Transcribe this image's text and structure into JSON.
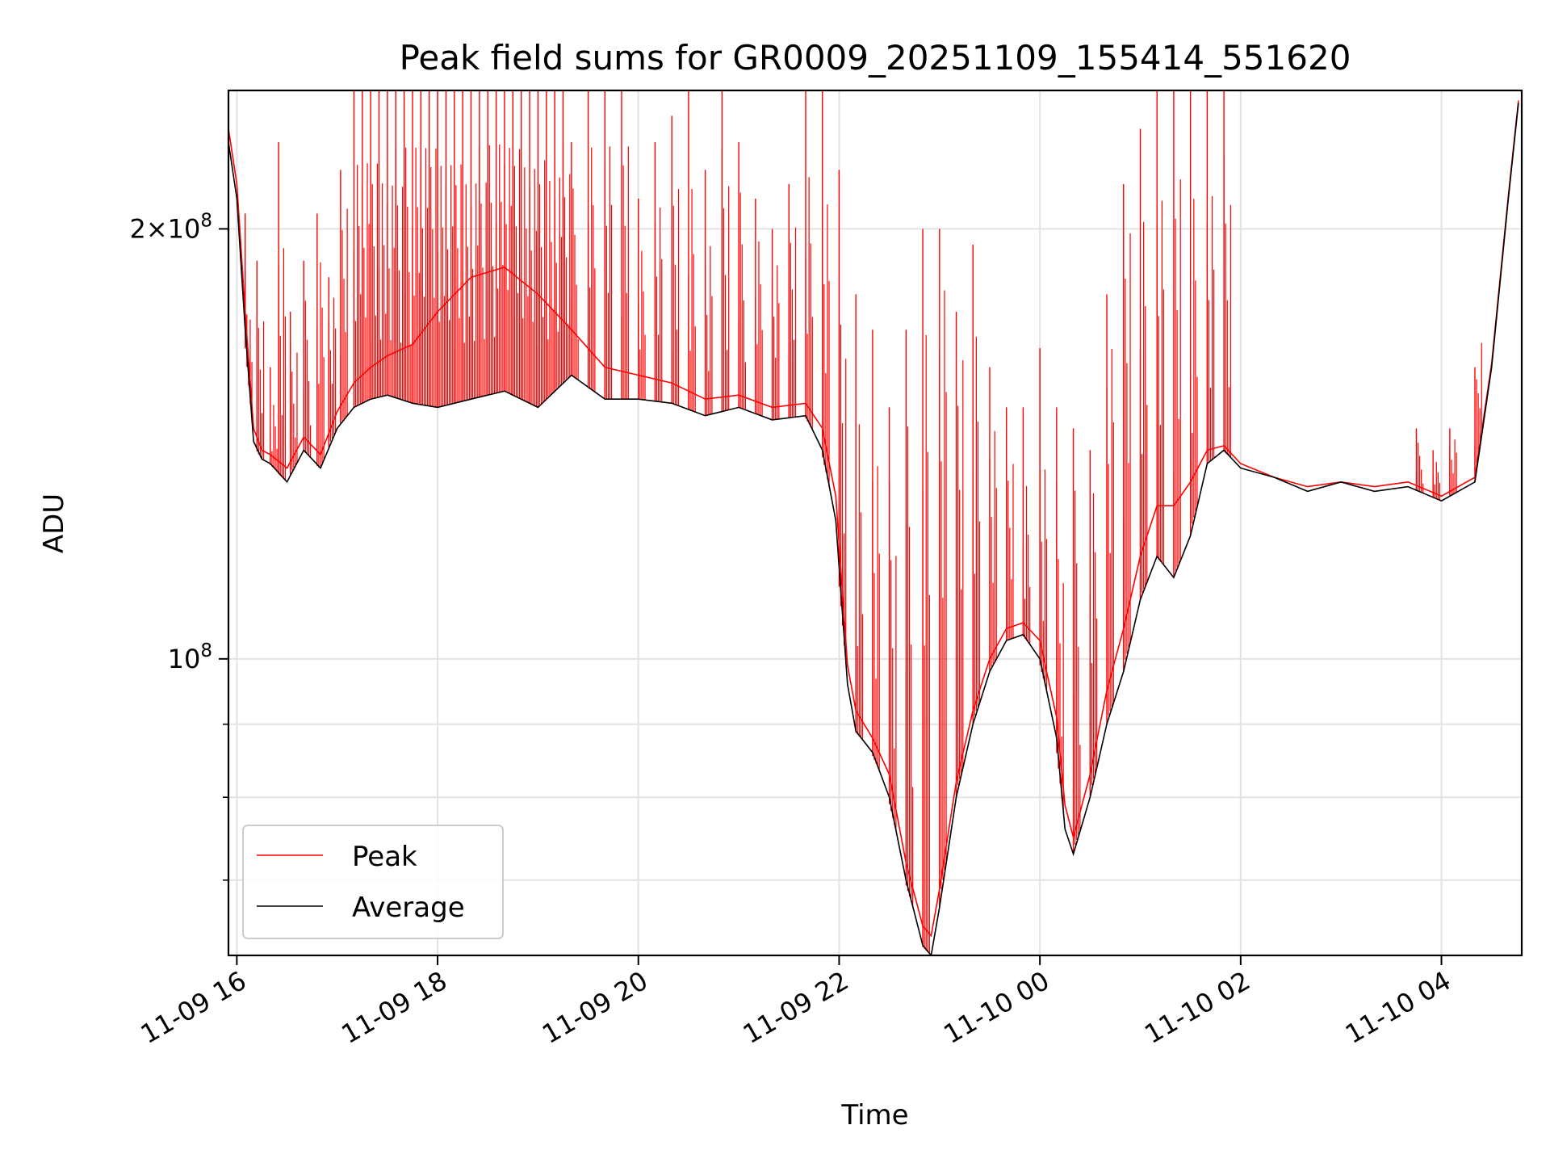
{
  "chart_data": {
    "type": "line",
    "title": "Peak field sums for GR0009_20251109_155414_551620",
    "xlabel": "Time",
    "ylabel": "ADU",
    "yscale": "log",
    "ylim": [
      62000000,
      250000000
    ],
    "xlim": [
      "2025-11-09 15:55",
      "2025-11-10 04:48"
    ],
    "grid": true,
    "legend": {
      "placement": "lower-left",
      "entries": [
        "Peak",
        "Average"
      ]
    },
    "x_ticks": [
      {
        "t": "2025-11-09 16:00",
        "label": "11-09 16"
      },
      {
        "t": "2025-11-09 18:00",
        "label": "11-09 18"
      },
      {
        "t": "2025-11-09 20:00",
        "label": "11-09 20"
      },
      {
        "t": "2025-11-09 22:00",
        "label": "11-09 22"
      },
      {
        "t": "2025-11-10 00:00",
        "label": "11-10 00"
      },
      {
        "t": "2025-11-10 02:00",
        "label": "11-10 02"
      },
      {
        "t": "2025-11-10 04:00",
        "label": "11-10 04"
      }
    ],
    "y_ticks_major": [
      {
        "v": 100000000,
        "mantissa": "",
        "base": "10",
        "exp": "8"
      },
      {
        "v": 200000000,
        "mantissa": "2×",
        "base": "10",
        "exp": "8"
      }
    ],
    "y_ticks_minor": [
      70000000,
      80000000,
      90000000,
      300000000
    ],
    "series": [
      {
        "name": "Average",
        "color": "#000000",
        "x": [
          "2025-11-09 15:55",
          "2025-11-09 16:00",
          "2025-11-09 16:05",
          "2025-11-09 16:10",
          "2025-11-09 16:15",
          "2025-11-09 16:20",
          "2025-11-09 16:30",
          "2025-11-09 16:40",
          "2025-11-09 16:50",
          "2025-11-09 17:00",
          "2025-11-09 17:10",
          "2025-11-09 17:20",
          "2025-11-09 17:30",
          "2025-11-09 17:45",
          "2025-11-09 18:00",
          "2025-11-09 18:20",
          "2025-11-09 18:40",
          "2025-11-09 19:00",
          "2025-11-09 19:20",
          "2025-11-09 19:40",
          "2025-11-09 20:00",
          "2025-11-09 20:20",
          "2025-11-09 20:40",
          "2025-11-09 21:00",
          "2025-11-09 21:20",
          "2025-11-09 21:40",
          "2025-11-09 21:50",
          "2025-11-09 21:58",
          "2025-11-09 22:05",
          "2025-11-09 22:10",
          "2025-11-09 22:20",
          "2025-11-09 22:30",
          "2025-11-09 22:40",
          "2025-11-09 22:50",
          "2025-11-09 22:55",
          "2025-11-09 23:00",
          "2025-11-09 23:10",
          "2025-11-09 23:20",
          "2025-11-09 23:30",
          "2025-11-09 23:40",
          "2025-11-09 23:50",
          "2025-11-10 00:00",
          "2025-11-10 00:10",
          "2025-11-10 00:15",
          "2025-11-10 00:20",
          "2025-11-10 00:30",
          "2025-11-10 00:40",
          "2025-11-10 00:50",
          "2025-11-10 01:00",
          "2025-11-10 01:10",
          "2025-11-10 01:20",
          "2025-11-10 01:30",
          "2025-11-10 01:40",
          "2025-11-10 01:50",
          "2025-11-10 02:00",
          "2025-11-10 02:20",
          "2025-11-10 02:40",
          "2025-11-10 03:00",
          "2025-11-10 03:20",
          "2025-11-10 03:40",
          "2025-11-10 04:00",
          "2025-11-10 04:20",
          "2025-11-10 04:30",
          "2025-11-10 04:40",
          "2025-11-10 04:46"
        ],
        "y": [
          230000000,
          210000000,
          170000000,
          142000000,
          138000000,
          137000000,
          133000000,
          140000000,
          136000000,
          145000000,
          150000000,
          152000000,
          153000000,
          151000000,
          150000000,
          152000000,
          154000000,
          150000000,
          158000000,
          152000000,
          152000000,
          151000000,
          148000000,
          150000000,
          147000000,
          148000000,
          140000000,
          125000000,
          96000000,
          89000000,
          86000000,
          80000000,
          70000000,
          63000000,
          62000000,
          67000000,
          80000000,
          90000000,
          98000000,
          103000000,
          104000000,
          100000000,
          88000000,
          76000000,
          73000000,
          80000000,
          90000000,
          98000000,
          110000000,
          118000000,
          114000000,
          122000000,
          137000000,
          140000000,
          136000000,
          134000000,
          131000000,
          133000000,
          131000000,
          132000000,
          129000000,
          133000000,
          160000000,
          210000000,
          245000000
        ]
      },
      {
        "name": "Peak",
        "color": "#ff0000",
        "x": [
          "2025-11-09 15:55",
          "2025-11-09 16:00",
          "2025-11-09 16:05",
          "2025-11-09 16:10",
          "2025-11-09 16:15",
          "2025-11-09 16:20",
          "2025-11-09 16:30",
          "2025-11-09 16:40",
          "2025-11-09 16:50",
          "2025-11-09 17:00",
          "2025-11-09 17:10",
          "2025-11-09 17:20",
          "2025-11-09 17:30",
          "2025-11-09 17:45",
          "2025-11-09 18:00",
          "2025-11-09 18:20",
          "2025-11-09 18:40",
          "2025-11-09 19:00",
          "2025-11-09 19:20",
          "2025-11-09 19:40",
          "2025-11-09 20:00",
          "2025-11-09 20:20",
          "2025-11-09 20:40",
          "2025-11-09 21:00",
          "2025-11-09 21:20",
          "2025-11-09 21:40",
          "2025-11-09 21:50",
          "2025-11-09 21:58",
          "2025-11-09 22:05",
          "2025-11-09 22:10",
          "2025-11-09 22:20",
          "2025-11-09 22:30",
          "2025-11-09 22:40",
          "2025-11-09 22:50",
          "2025-11-09 22:55",
          "2025-11-09 23:00",
          "2025-11-09 23:10",
          "2025-11-09 23:20",
          "2025-11-09 23:30",
          "2025-11-09 23:40",
          "2025-11-09 23:50",
          "2025-11-10 00:00",
          "2025-11-10 00:10",
          "2025-11-10 00:15",
          "2025-11-10 00:20",
          "2025-11-10 00:30",
          "2025-11-10 00:40",
          "2025-11-10 00:50",
          "2025-11-10 01:00",
          "2025-11-10 01:10",
          "2025-11-10 01:20",
          "2025-11-10 01:30",
          "2025-11-10 01:40",
          "2025-11-10 01:50",
          "2025-11-10 02:00",
          "2025-11-10 02:20",
          "2025-11-10 02:40",
          "2025-11-10 03:00",
          "2025-11-10 03:20",
          "2025-11-10 03:40",
          "2025-11-10 04:00",
          "2025-11-10 04:20",
          "2025-11-10 04:30",
          "2025-11-10 04:40",
          "2025-11-10 04:46"
        ],
        "y": [
          235000000,
          215000000,
          175000000,
          145000000,
          140000000,
          139000000,
          136000000,
          143000000,
          139000000,
          149000000,
          156000000,
          160000000,
          163000000,
          166000000,
          175000000,
          185000000,
          188000000,
          180000000,
          170000000,
          160000000,
          158000000,
          156000000,
          152000000,
          153000000,
          150000000,
          151000000,
          145000000,
          130000000,
          99000000,
          92000000,
          88000000,
          83000000,
          72000000,
          65000000,
          64000000,
          69000000,
          82000000,
          92000000,
          100000000,
          105000000,
          106000000,
          103000000,
          91000000,
          79000000,
          75000000,
          83000000,
          95000000,
          105000000,
          118000000,
          128000000,
          128000000,
          133000000,
          140000000,
          141000000,
          137000000,
          134000000,
          132000000,
          133000000,
          132000000,
          133000000,
          130000000,
          134000000,
          161000000,
          211000000,
          246000000
        ]
      }
    ],
    "peak_spikes": {
      "description_note": "",
      "x": [
        "2025-11-09 16:05",
        "2025-11-09 16:12",
        "2025-11-09 16:20",
        "2025-11-09 16:25",
        "2025-11-09 16:32",
        "2025-11-09 16:40",
        "2025-11-09 16:48",
        "2025-11-09 16:55",
        "2025-11-09 17:02",
        "2025-11-09 17:10",
        "2025-11-09 17:15",
        "2025-11-09 17:20",
        "2025-11-09 17:25",
        "2025-11-09 17:30",
        "2025-11-09 17:35",
        "2025-11-09 17:40",
        "2025-11-09 17:45",
        "2025-11-09 17:50",
        "2025-11-09 17:55",
        "2025-11-09 18:00",
        "2025-11-09 18:05",
        "2025-11-09 18:10",
        "2025-11-09 18:15",
        "2025-11-09 18:20",
        "2025-11-09 18:25",
        "2025-11-09 18:30",
        "2025-11-09 18:35",
        "2025-11-09 18:40",
        "2025-11-09 18:45",
        "2025-11-09 18:50",
        "2025-11-09 18:55",
        "2025-11-09 19:00",
        "2025-11-09 19:05",
        "2025-11-09 19:10",
        "2025-11-09 19:15",
        "2025-11-09 19:20",
        "2025-11-09 19:30",
        "2025-11-09 19:40",
        "2025-11-09 19:50",
        "2025-11-09 20:00",
        "2025-11-09 20:10",
        "2025-11-09 20:20",
        "2025-11-09 20:30",
        "2025-11-09 20:40",
        "2025-11-09 20:50",
        "2025-11-09 21:00",
        "2025-11-09 21:10",
        "2025-11-09 21:20",
        "2025-11-09 21:30",
        "2025-11-09 21:40",
        "2025-11-09 21:50",
        "2025-11-09 22:00",
        "2025-11-09 22:10",
        "2025-11-09 22:20",
        "2025-11-09 22:30",
        "2025-11-09 22:40",
        "2025-11-09 22:50",
        "2025-11-09 23:00",
        "2025-11-09 23:10",
        "2025-11-09 23:20",
        "2025-11-09 23:30",
        "2025-11-09 23:40",
        "2025-11-09 23:50",
        "2025-11-10 00:00",
        "2025-11-10 00:10",
        "2025-11-10 00:20",
        "2025-11-10 00:30",
        "2025-11-10 00:40",
        "2025-11-10 00:50",
        "2025-11-10 01:00",
        "2025-11-10 01:10",
        "2025-11-10 01:20",
        "2025-11-10 01:30",
        "2025-11-10 01:40",
        "2025-11-10 01:50",
        "2025-11-10 03:45",
        "2025-11-10 03:55",
        "2025-11-10 04:05",
        "2025-11-10 04:20"
      ],
      "y": [
        205000000,
        190000000,
        160000000,
        230000000,
        175000000,
        190000000,
        205000000,
        185000000,
        220000000,
        250000000,
        250000000,
        250000000,
        250000000,
        250000000,
        250000000,
        250000000,
        250000000,
        250000000,
        250000000,
        250000000,
        250000000,
        250000000,
        250000000,
        250000000,
        250000000,
        250000000,
        250000000,
        250000000,
        250000000,
        250000000,
        250000000,
        250000000,
        250000000,
        250000000,
        250000000,
        230000000,
        250000000,
        250000000,
        250000000,
        210000000,
        230000000,
        240000000,
        250000000,
        220000000,
        250000000,
        230000000,
        210000000,
        200000000,
        215000000,
        250000000,
        250000000,
        220000000,
        180000000,
        170000000,
        150000000,
        170000000,
        200000000,
        200000000,
        175000000,
        195000000,
        160000000,
        150000000,
        150000000,
        165000000,
        150000000,
        145000000,
        140000000,
        180000000,
        215000000,
        235000000,
        250000000,
        250000000,
        250000000,
        250000000,
        250000000,
        145000000,
        140000000,
        145000000,
        160000000
      ]
    }
  }
}
